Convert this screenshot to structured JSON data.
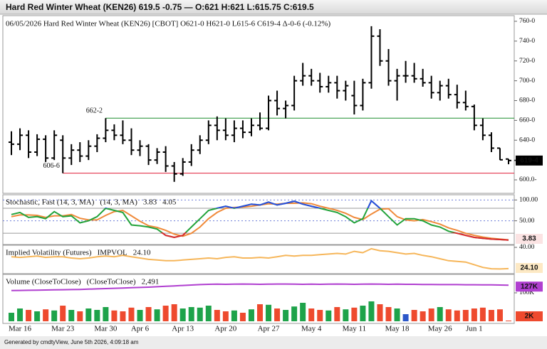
{
  "header": {
    "title": "Hard Red Winter Wheat (KEN26) 619.5 -0.75 — O:621 H:621 L:615.75 C:619.5"
  },
  "footer": "Generated by cmdtyView, June 5th 2026, 4:09:18 am",
  "chart_data": [
    {
      "type": "ohlc",
      "subtitle": "06/05/2026 Hard Red Winter Wheat (KEN26) [CBOT]  O621-0  H621-0  L615-6  C619-4  Δ-0-6 (-0.12%)",
      "categories": [
        null,
        "Mar 16",
        null,
        null,
        null,
        null,
        "Mar 23",
        null,
        null,
        null,
        null,
        "Mar 30",
        null,
        null,
        null,
        "Apr 6",
        null,
        null,
        null,
        null,
        "Apr 13",
        null,
        null,
        null,
        null,
        "Apr 20",
        null,
        null,
        null,
        null,
        "Apr 27",
        null,
        null,
        null,
        null,
        "May 4",
        null,
        null,
        null,
        null,
        "May 11",
        null,
        null,
        null,
        null,
        "May 18",
        null,
        null,
        null,
        null,
        "May 26",
        null,
        null,
        null,
        "Jun 1",
        null,
        null,
        null,
        null
      ],
      "open": [
        638,
        636,
        645,
        628,
        641,
        622,
        640,
        622,
        630,
        624,
        634,
        642,
        650,
        645,
        640,
        630,
        634,
        620,
        628,
        614,
        606,
        618,
        630,
        640,
        655,
        650,
        645,
        652,
        648,
        655,
        652,
        680,
        672,
        675,
        700,
        705,
        700,
        694,
        698,
        690,
        685,
        675,
        698,
        745,
        720,
        700,
        705,
        705,
        702,
        698,
        688,
        695,
        686,
        678,
        674,
        655,
        645,
        632,
        621
      ],
      "high": [
        649,
        652,
        650,
        646,
        645,
        650,
        645,
        636,
        638,
        640,
        646,
        662.25,
        656,
        660,
        652,
        640,
        636,
        632,
        634,
        618,
        622,
        636,
        645,
        660,
        664,
        662,
        660,
        660,
        662,
        668,
        685,
        690,
        680,
        705,
        718,
        712,
        708,
        705,
        705,
        700,
        700,
        702,
        755,
        752,
        732,
        712,
        720,
        718,
        712,
        705,
        700,
        702,
        696,
        690,
        676,
        662,
        648,
        632,
        621
      ],
      "low": [
        625,
        630,
        622,
        624,
        618,
        620,
        606.75,
        615,
        618,
        620,
        628,
        638,
        640,
        636,
        625,
        624,
        615,
        616,
        608,
        598,
        604,
        614,
        626,
        636,
        640,
        640,
        638,
        642,
        644,
        650,
        650,
        665,
        662,
        670,
        695,
        695,
        688,
        688,
        682,
        680,
        666,
        670,
        692,
        715,
        695,
        680,
        698,
        698,
        694,
        682,
        680,
        682,
        672,
        670,
        650,
        640,
        628,
        620,
        615.75
      ],
      "close": [
        636,
        645,
        628,
        641,
        622,
        645,
        622,
        630,
        624,
        634,
        642,
        650,
        645,
        640,
        630,
        634,
        620,
        628,
        614,
        606,
        618,
        630,
        640,
        655,
        650,
        645,
        652,
        648,
        655,
        652,
        680,
        672,
        675,
        700,
        705,
        700,
        694,
        698,
        690,
        695,
        675,
        698,
        745,
        720,
        700,
        705,
        705,
        702,
        698,
        688,
        695,
        686,
        678,
        674,
        655,
        645,
        632,
        620.25,
        619.5
      ],
      "color": "#000000",
      "ylim": [
        586.4,
        765.7
      ],
      "yticks": [
        {
          "value": 600,
          "label": "600.0-"
        },
        {
          "value": 620,
          "label": "620.0-"
        },
        {
          "value": 640,
          "label": "640-0"
        },
        {
          "value": 660,
          "label": "660-0"
        },
        {
          "value": 680,
          "label": "680-0"
        },
        {
          "value": 700,
          "label": "700-0"
        },
        {
          "value": 720,
          "label": "720-0"
        },
        {
          "value": 740,
          "label": "740-0"
        },
        {
          "value": 760,
          "label": "760-0"
        }
      ],
      "last_label": {
        "value": 619.5,
        "label": "619-4"
      },
      "annotations": [
        {
          "value": 662.25,
          "label": "662-2",
          "color": "#1f8f2f",
          "anchor": "high"
        },
        {
          "value": 606.75,
          "label": "606-6",
          "color": "#e0203a",
          "anchor": "low"
        }
      ]
    },
    {
      "type": "line",
      "title": "Stochastic, Fast (14, 3, MA)",
      "series": [
        {
          "name": "(14, 3, MA)",
          "color": "#22a33a",
          "values": [
            65,
            70,
            58,
            60,
            55,
            72,
            60,
            62,
            45,
            50,
            60,
            80,
            75,
            70,
            40,
            38,
            35,
            30,
            15,
            10,
            15,
            35,
            55,
            75,
            80,
            85,
            80,
            85,
            90,
            88,
            95,
            88,
            92,
            97,
            90,
            85,
            80,
            75,
            70,
            60,
            45,
            55,
            98,
            80,
            60,
            40,
            55,
            55,
            50,
            40,
            35,
            25,
            20,
            15,
            10,
            8,
            6,
            5,
            3.83
          ]
        },
        {
          "color": "#f08a3a",
          "values": [
            60,
            64,
            64,
            63,
            58,
            62,
            62,
            65,
            56,
            52,
            52,
            63,
            72,
            75,
            62,
            49,
            38,
            34,
            27,
            18,
            13,
            20,
            35,
            55,
            70,
            80,
            82,
            83,
            85,
            88,
            91,
            90,
            92,
            92,
            93,
            91,
            85,
            80,
            75,
            68,
            58,
            53,
            66,
            78,
            79,
            60,
            52,
            50,
            53,
            48,
            42,
            33,
            27,
            20,
            15,
            11,
            8,
            6,
            4.05
          ]
        }
      ],
      "overbought": 80,
      "oversold": 20,
      "overbought_color": "#2b4de0",
      "oversold_color": "#e0282e",
      "last_color": "#e0282e",
      "ylim": [
        -7,
        112.5
      ],
      "yticks": [
        {
          "value": 100,
          "label": "100.00"
        },
        {
          "value": 50,
          "label": "50.00"
        }
      ]
    },
    {
      "type": "line",
      "title": "Implied Volatility (Futures)",
      "series": [
        {
          "name": "IMPVOL",
          "color": "#f6b65a",
          "legend_value_label": "24.10",
          "values": [
            33,
            32.5,
            33,
            33.5,
            32.5,
            33,
            33,
            32,
            31.5,
            32,
            33,
            33.5,
            33,
            34,
            33,
            32,
            31,
            30.5,
            30,
            30,
            30.5,
            31,
            31.5,
            32,
            31.5,
            32.5,
            33,
            32,
            32,
            32.5,
            32,
            33,
            34,
            33.5,
            34,
            34,
            34.5,
            35,
            35.5,
            35,
            37,
            36,
            39,
            37.5,
            37,
            36,
            35,
            35.5,
            34,
            33,
            31.5,
            30,
            29.5,
            29,
            27,
            25,
            24,
            23.8,
            24.1
          ]
        }
      ],
      "ylim": [
        20.3,
        41.6
      ],
      "yticks": [
        {
          "value": 40,
          "label": "40.00"
        }
      ]
    },
    {
      "type": "bar",
      "title": "Volume (CloseToClose)",
      "up_color": "#1ea34a",
      "down_color": "#ee4a2e",
      "flat_color": "#2b57c9",
      "series": [
        {
          "color": "#ee4a2e",
          "legend_value_label": "2,491",
          "axis_value_label": "2K",
          "values": [
            30000,
            45000,
            40000,
            35000,
            42000,
            38000,
            55000,
            40000,
            35000,
            45000,
            40000,
            50000,
            38000,
            35000,
            48000,
            40000,
            50000,
            42000,
            55000,
            60000,
            45000,
            50000,
            48000,
            55000,
            40000,
            35000,
            38000,
            30000,
            42000,
            60000,
            58000,
            45000,
            40000,
            52000,
            65000,
            45000,
            40000,
            38000,
            50000,
            42000,
            48000,
            55000,
            70000,
            60000,
            50000,
            45000,
            25000,
            40000,
            35000,
            45000,
            50000,
            42000,
            38000,
            40000,
            45000,
            48000,
            40000,
            42000,
            2491
          ]
        },
        {
          "name": "(CloseToClose)",
          "color": "#b03fd0",
          "axis_value_label": "127K",
          "values": [
            108000,
            108500,
            109000,
            109500,
            110000,
            110500,
            111000,
            111500,
            112000,
            113000,
            114000,
            115000,
            116000,
            117000,
            118000,
            119000,
            120000,
            121500,
            123000,
            124500,
            126000,
            127500,
            129000,
            130000,
            130500,
            130000,
            130500,
            131000,
            130500,
            130000,
            130500,
            131000,
            131000,
            130500,
            130000,
            130500,
            130000,
            130500,
            131000,
            130500,
            130000,
            130500,
            131000,
            130500,
            130000,
            130500,
            130000,
            130000,
            129500,
            129500,
            129000,
            129000,
            129000,
            128500,
            128500,
            128000,
            128000,
            127500,
            127000
          ]
        }
      ],
      "ylim": [
        -7500,
        165000
      ],
      "yticks": [
        {
          "value": 100000,
          "label": "100K"
        }
      ]
    }
  ]
}
